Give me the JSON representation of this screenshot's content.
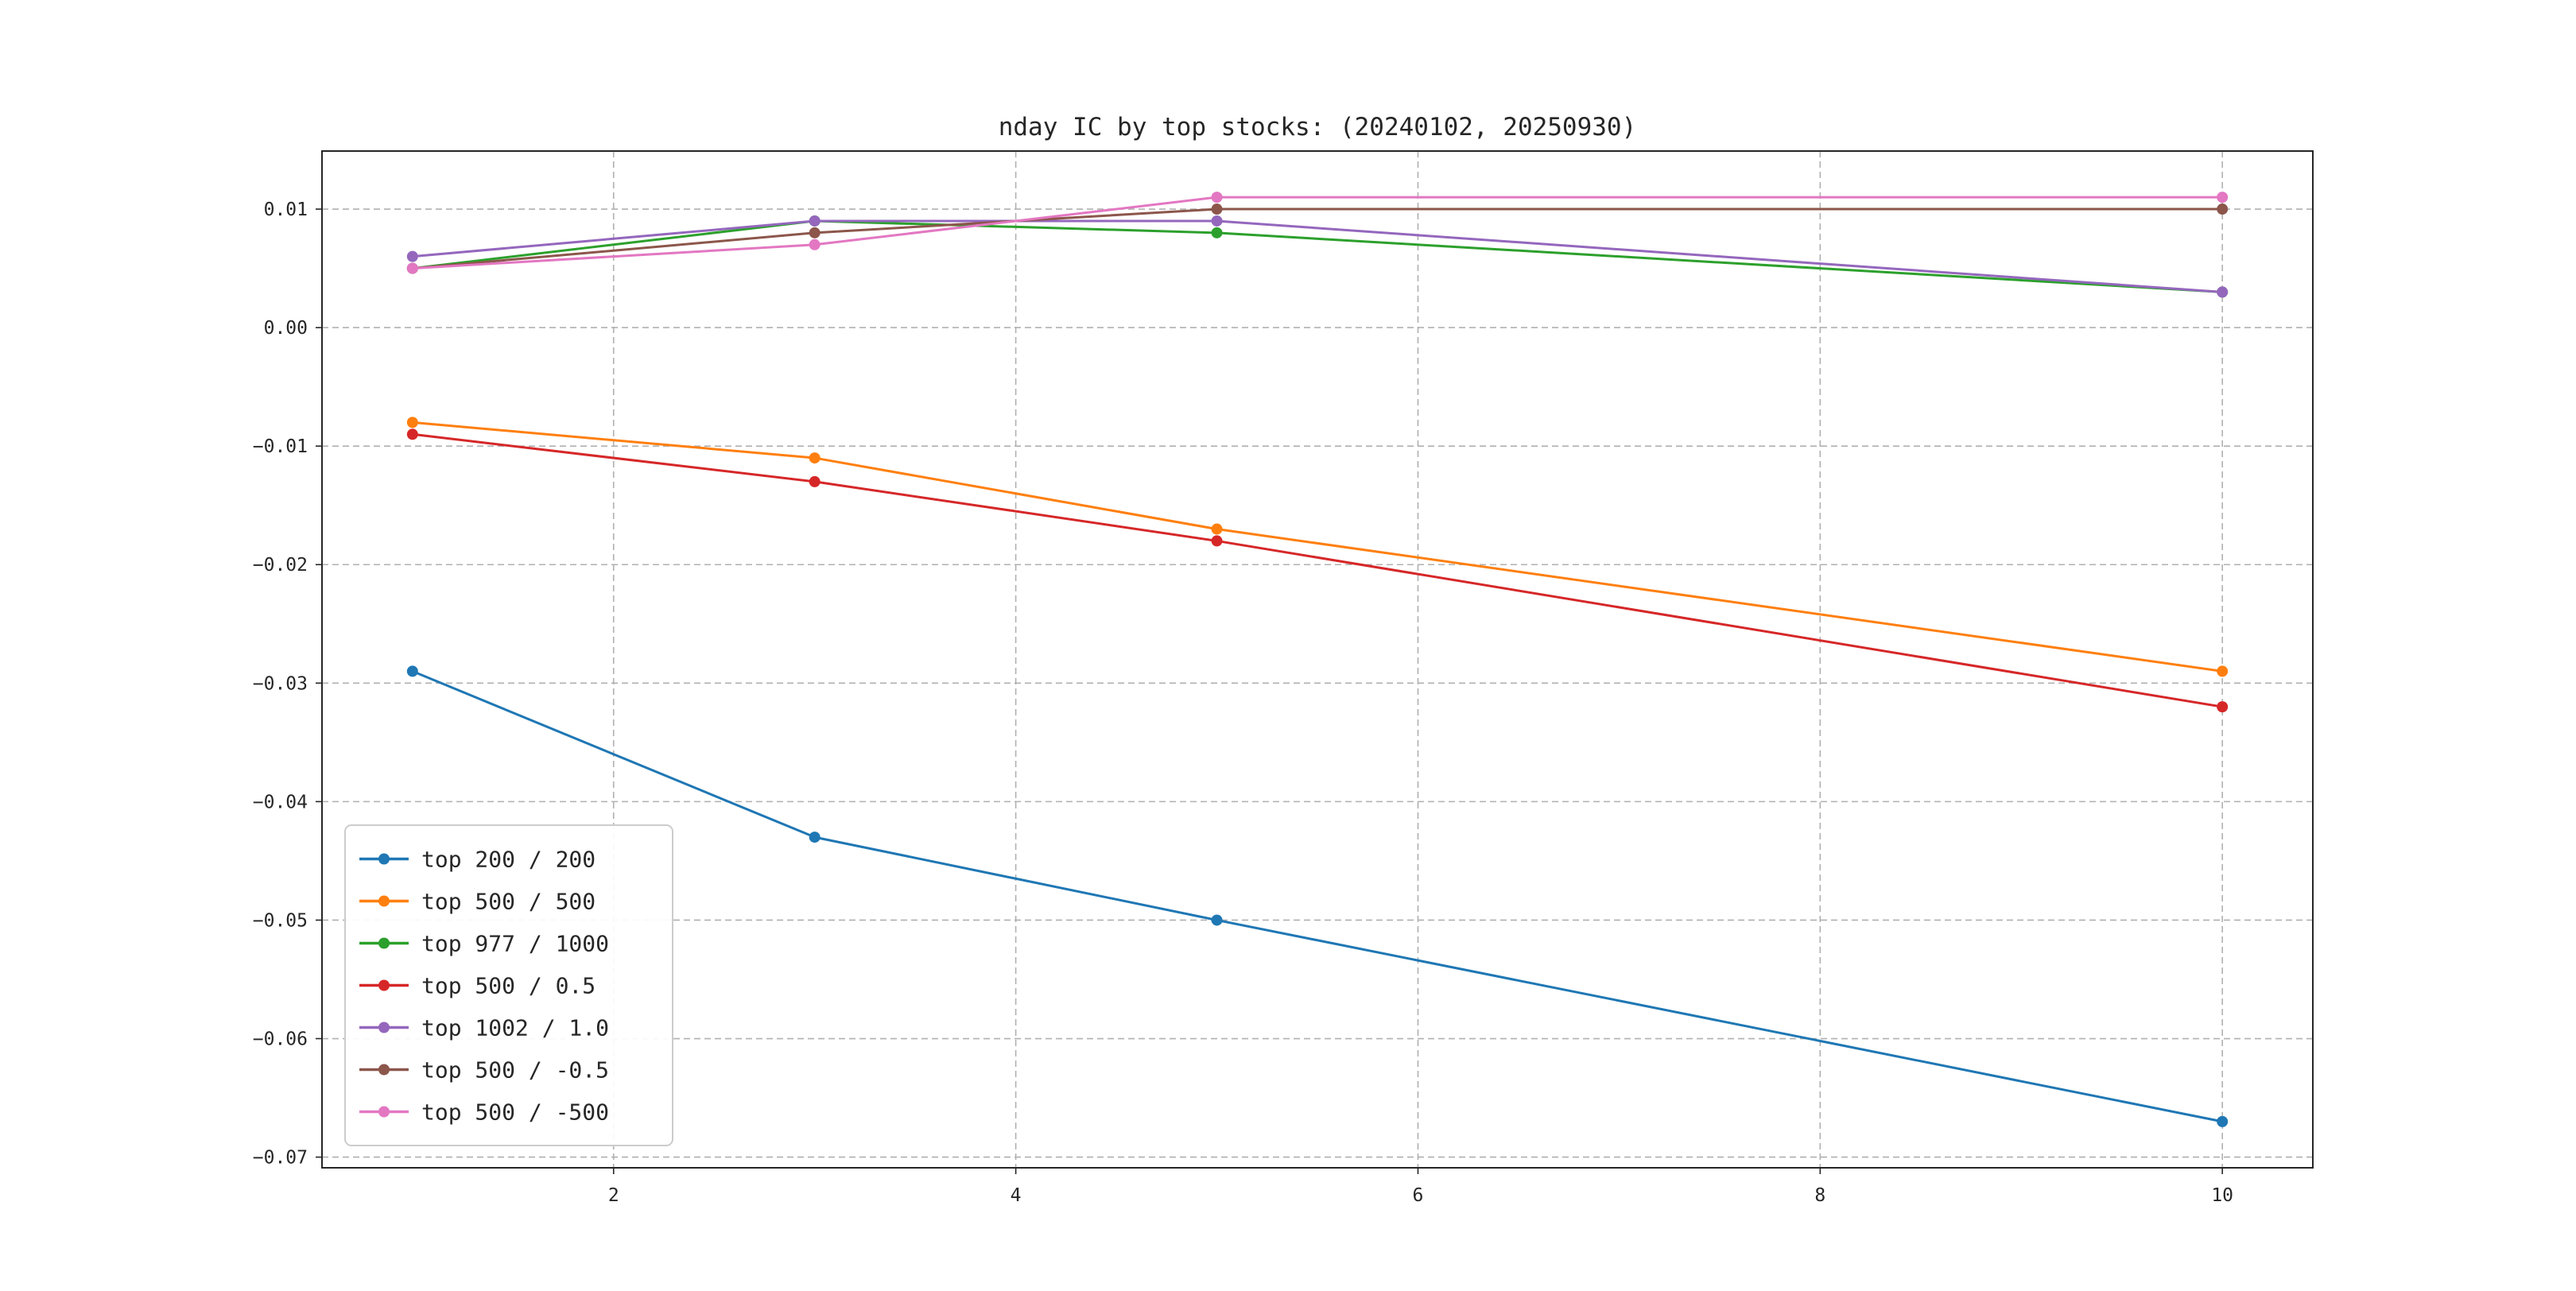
{
  "chart_data": {
    "type": "line",
    "title": "nday IC by top stocks: (20240102, 20250930)",
    "x": [
      1,
      3,
      5,
      10
    ],
    "series": [
      {
        "name": "top 200 / 200",
        "color": "#1f77b4",
        "values": [
          -0.029,
          -0.043,
          -0.05,
          -0.067
        ]
      },
      {
        "name": "top 500 / 500",
        "color": "#ff7f0e",
        "values": [
          -0.008,
          -0.011,
          -0.017,
          -0.029
        ]
      },
      {
        "name": "top 977 / 1000",
        "color": "#2ca02c",
        "values": [
          0.005,
          0.009,
          0.008,
          0.003
        ]
      },
      {
        "name": "top 500 / 0.5",
        "color": "#d62728",
        "values": [
          -0.009,
          -0.013,
          -0.018,
          -0.032
        ]
      },
      {
        "name": "top 1002 / 1.0",
        "color": "#9467bd",
        "values": [
          0.006,
          0.009,
          0.009,
          0.003
        ]
      },
      {
        "name": "top 500 / -0.5",
        "color": "#8c564b",
        "values": [
          0.005,
          0.008,
          0.01,
          0.01
        ]
      },
      {
        "name": "top 500 / -500",
        "color": "#e377c2",
        "values": [
          0.005,
          0.007,
          0.011,
          0.011
        ]
      }
    ],
    "xticks": [
      2,
      4,
      6,
      8,
      10
    ],
    "yticks": [
      0.01,
      0.0,
      -0.01,
      -0.02,
      -0.03,
      -0.04,
      -0.05,
      -0.06,
      -0.07
    ],
    "xlim": [
      0.55,
      10.45
    ],
    "ylim": [
      -0.0709,
      0.0149
    ],
    "grid": true,
    "grid_style": "dashed",
    "legend_position": "lower left",
    "marker": "o",
    "colors": {
      "grid": "#b0b0b0",
      "spine": "#262626",
      "legend_edge": "#cccccc",
      "background": "#ffffff"
    }
  }
}
